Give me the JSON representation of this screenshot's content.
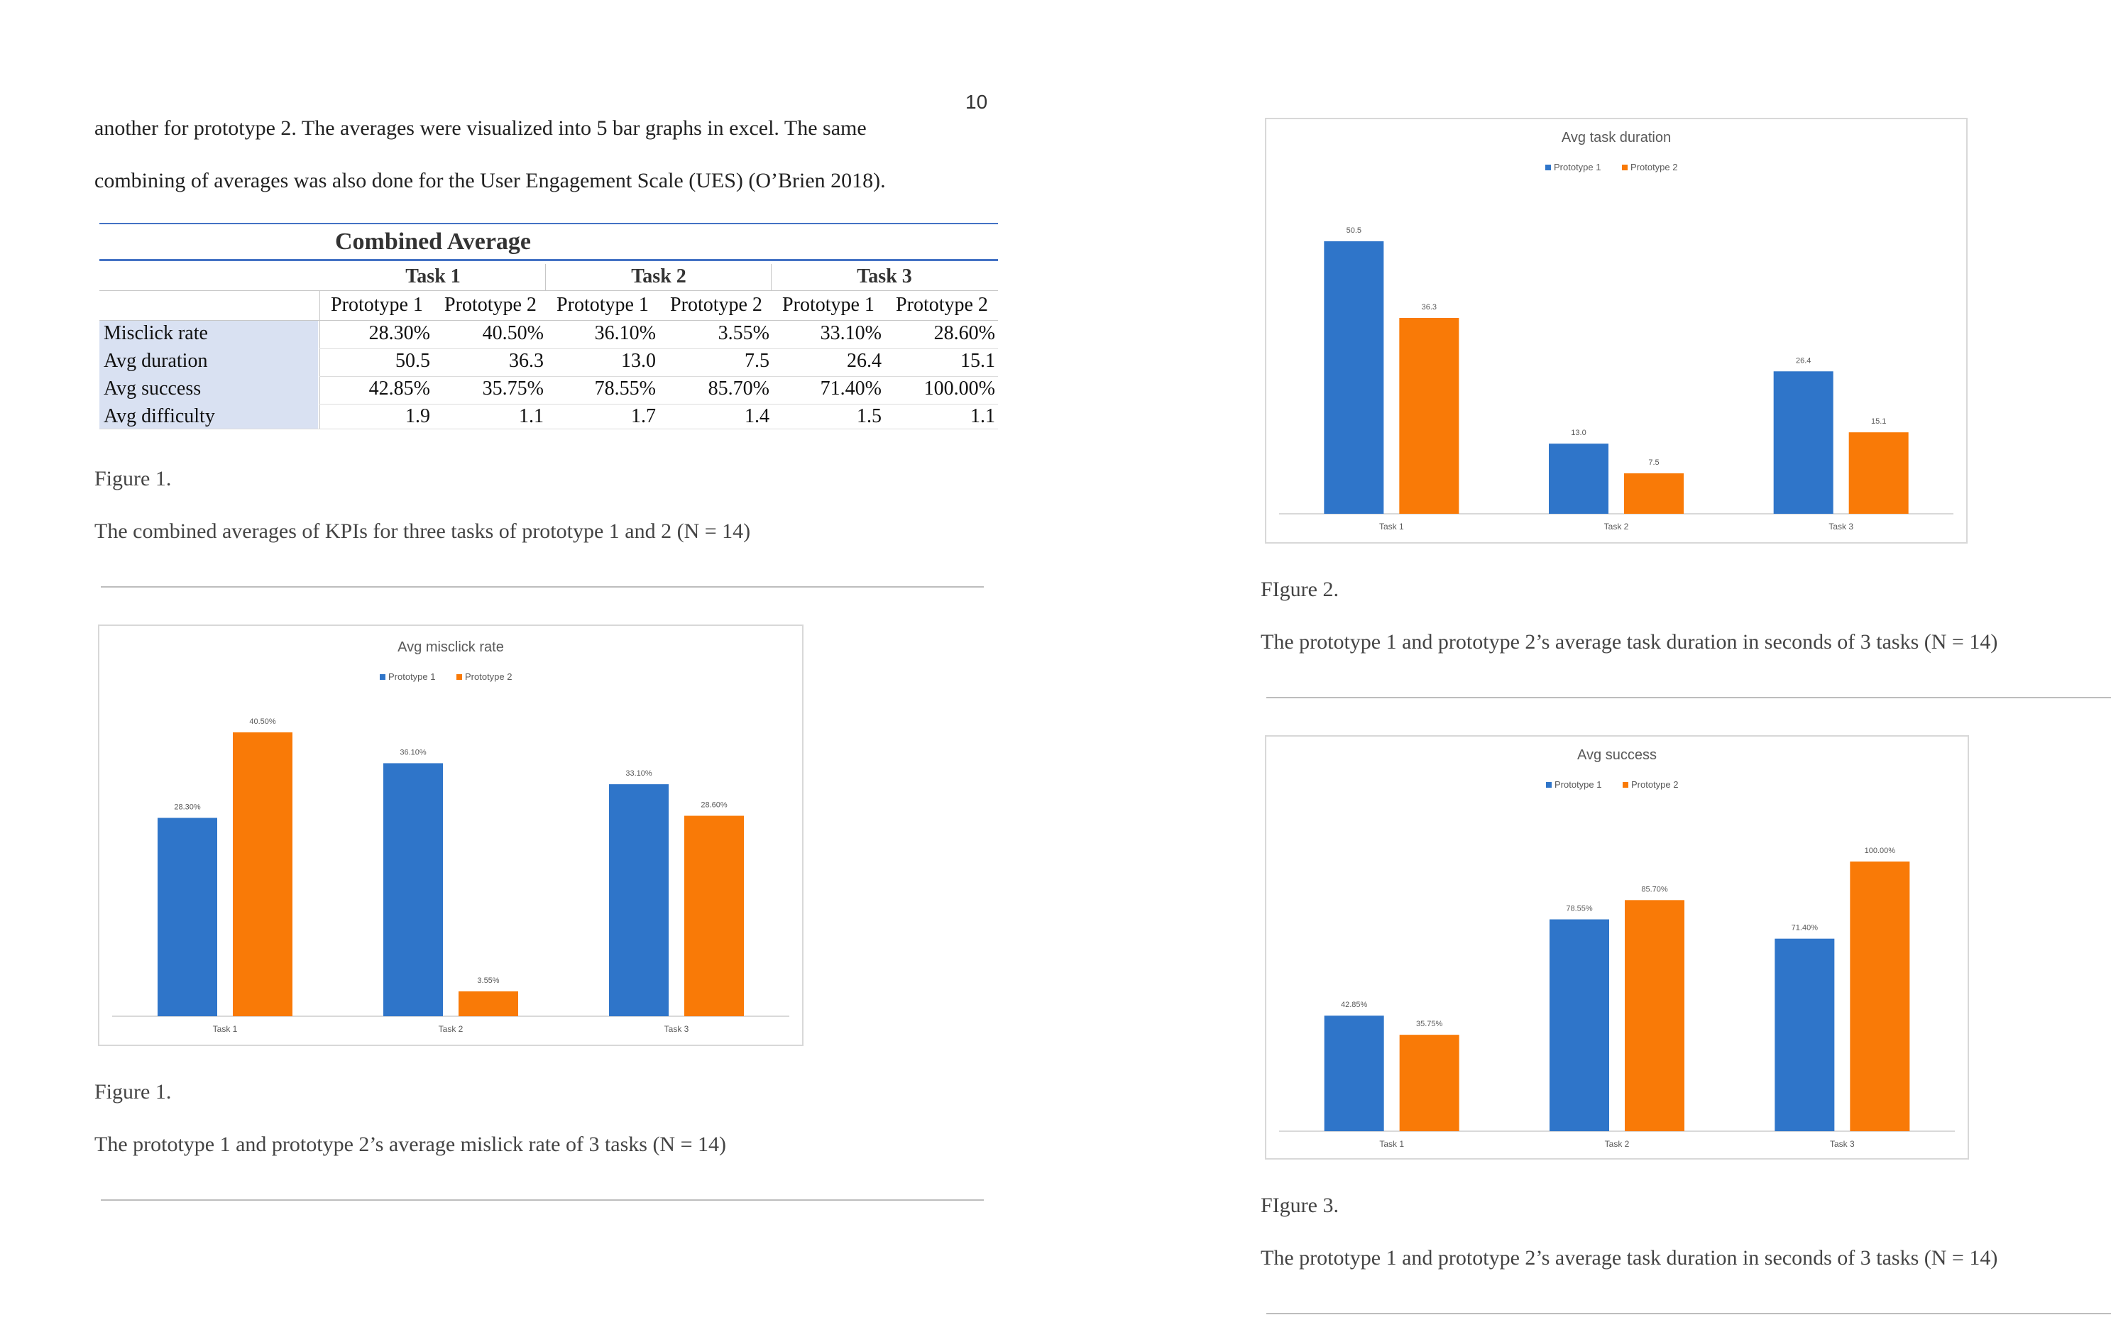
{
  "page_number": "10",
  "intro": {
    "line1": "another for prototype 2. The averages were visualized into 5 bar graphs in excel. The same",
    "line2": "combining of averages was also done for the User Engagement Scale (UES) (O’Brien 2018)."
  },
  "table": {
    "title": "Combined Average",
    "tasks": [
      "Task 1",
      "Task 2",
      "Task 3"
    ],
    "subheaders": [
      "Prototype 1",
      "Prototype 2",
      "Prototype 1",
      "Prototype 2",
      "Prototype 1",
      "Prototype 2"
    ],
    "rows": [
      {
        "label": "Misclick rate",
        "values": [
          "28.30%",
          "40.50%",
          "36.10%",
          "3.55%",
          "33.10%",
          "28.60%"
        ]
      },
      {
        "label": "Avg duration",
        "values": [
          "50.5",
          "36.3",
          "13.0",
          "7.5",
          "26.4",
          "15.1"
        ]
      },
      {
        "label": "Avg success",
        "values": [
          "42.85%",
          "35.75%",
          "78.55%",
          "85.70%",
          "71.40%",
          "100.00%"
        ]
      },
      {
        "label": "Avg difficulty",
        "values": [
          "1.9",
          "1.1",
          "1.7",
          "1.4",
          "1.5",
          "1.1"
        ]
      }
    ]
  },
  "figure1_table_caption": {
    "label": "Figure 1.",
    "text": "The combined averages of KPIs for three tasks of prototype 1 and 2 (N = 14)"
  },
  "figure_misclick_caption": {
    "label": "Figure 1.",
    "text": "The prototype 1 and prototype 2’s average mislick rate of 3 tasks (N = 14)"
  },
  "figure2_caption": {
    "label": "FIgure 2.",
    "text": "The prototype 1 and prototype 2’s average task duration in seconds of 3 tasks (N = 14)"
  },
  "figure3_caption": {
    "label": "FIgure 3.",
    "text": "The prototype 1 and prototype 2’s average task duration in seconds of 3 tasks (N = 14)"
  },
  "colors": {
    "prototype1": "#2f75c9",
    "prototype2": "#f97a07",
    "axis": "#d9d9d9",
    "chart_text": "#595959",
    "table_rule": "#4472c4",
    "row_label_bg": "#d9e1f2"
  },
  "chart_data": [
    {
      "id": "misclick",
      "type": "bar",
      "title": "Avg misclick rate",
      "categories": [
        "Task 1",
        "Task 2",
        "Task 3"
      ],
      "series": [
        {
          "name": "Prototype 1",
          "values": [
            28.3,
            36.1,
            33.1
          ],
          "labels": [
            "28.30%",
            "36.10%",
            "33.10%"
          ]
        },
        {
          "name": "Prototype 2",
          "values": [
            40.5,
            3.55,
            28.6
          ],
          "labels": [
            "40.50%",
            "3.55%",
            "28.60%"
          ]
        }
      ],
      "ylim": [
        0,
        40.5
      ],
      "legend": "top",
      "grid": false
    },
    {
      "id": "duration",
      "type": "bar",
      "title": "Avg task duration",
      "categories": [
        "Task 1",
        "Task 2",
        "Task 3"
      ],
      "series": [
        {
          "name": "Prototype 1",
          "values": [
            50.5,
            13.0,
            26.4
          ],
          "labels": [
            "50.5",
            "13.0",
            "26.4"
          ]
        },
        {
          "name": "Prototype 2",
          "values": [
            36.3,
            7.5,
            15.1
          ],
          "labels": [
            "36.3",
            "7.5",
            "15.1"
          ]
        }
      ],
      "ylim": [
        0,
        50.5
      ],
      "legend": "top",
      "grid": false
    },
    {
      "id": "success",
      "type": "bar",
      "title": "Avg success",
      "categories": [
        "Task 1",
        "Task 2",
        "Task 3"
      ],
      "series": [
        {
          "name": "Prototype 1",
          "values": [
            42.85,
            78.55,
            71.4
          ],
          "labels": [
            "42.85%",
            "78.55%",
            "71.40%"
          ]
        },
        {
          "name": "Prototype 2",
          "values": [
            35.75,
            85.7,
            100.0
          ],
          "labels": [
            "35.75%",
            "85.70%",
            "100.00%"
          ]
        }
      ],
      "ylim": [
        0,
        100
      ],
      "legend": "top",
      "grid": false
    }
  ]
}
